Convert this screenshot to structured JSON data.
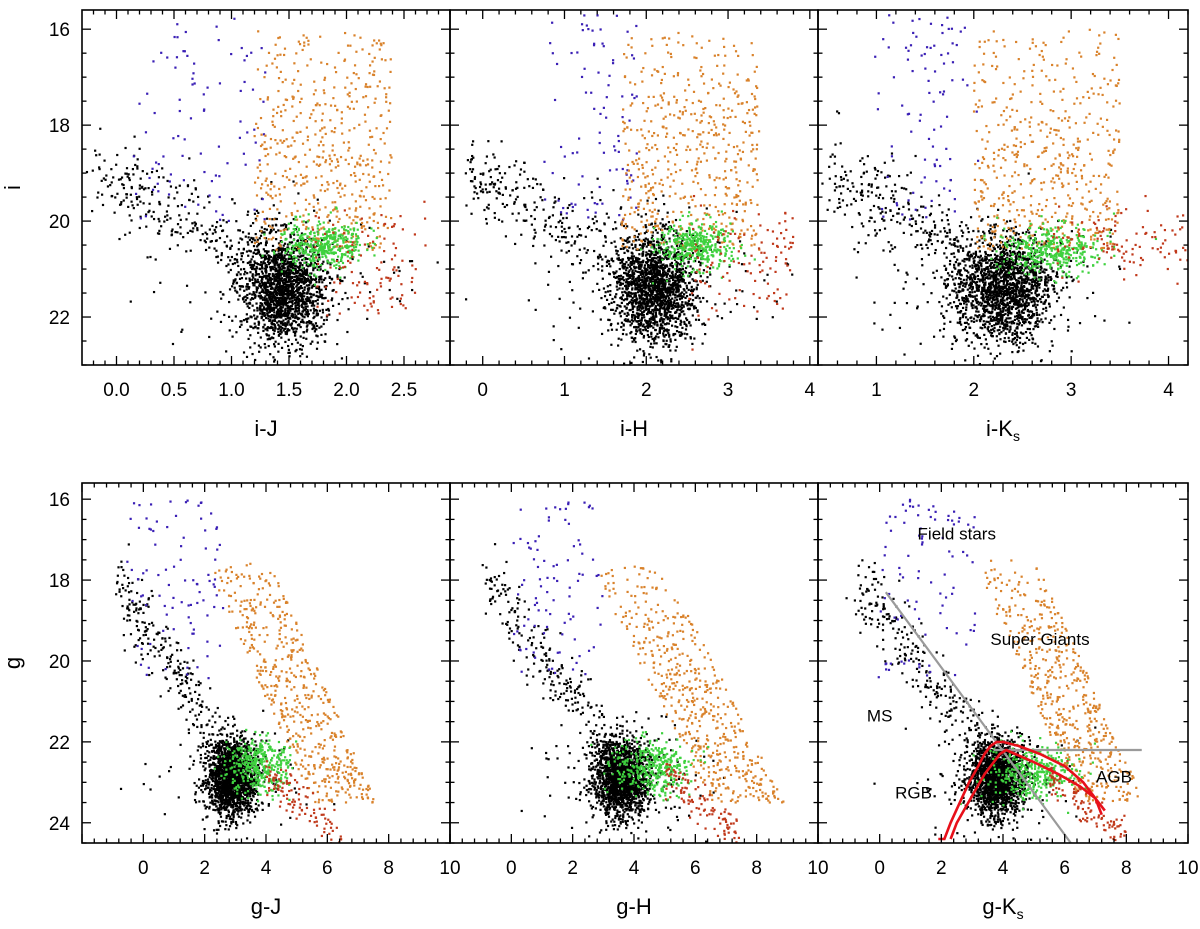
{
  "colors": {
    "ms": "#000000",
    "field": "#3a1fb5",
    "supergiant": "#d9822b",
    "rgb": "#3ed13e",
    "agb": "#c0391b",
    "isochrone": "#e8101a",
    "divider": "#9a9a9a"
  },
  "chart_data": [
    {
      "panel": "i_vs_iJ",
      "type": "scatter",
      "xlabel": "i-J",
      "ylabel": "i",
      "xlim": [
        -0.3,
        2.9
      ],
      "ylim": [
        23.0,
        15.6
      ],
      "xticks": [
        0.0,
        0.5,
        1.0,
        1.5,
        2.0,
        2.5
      ],
      "xtick_labels": [
        "0.0",
        "0.5",
        "1.0",
        "1.5",
        "2.0",
        "2.5"
      ],
      "yticks": [
        16,
        18,
        20,
        22
      ],
      "ytick_labels": [
        "16",
        "18",
        "20",
        "22"
      ],
      "clusters": {
        "ms": {
          "cx": 1.45,
          "cy": 21.4,
          "sx": 0.18,
          "sy": 0.55
        },
        "ms_spread": {
          "x": [
            -0.2,
            1.3
          ],
          "y": [
            19.0,
            20.8
          ],
          "slope": -1.0
        },
        "field": {
          "x": [
            0.2,
            1.3
          ],
          "y": [
            15.7,
            20.0
          ]
        },
        "supergiant": {
          "x": [
            1.2,
            2.4
          ],
          "y": [
            16.0,
            20.6
          ]
        },
        "rgb": {
          "cx": 1.8,
          "cy": 20.5,
          "sx": 0.18,
          "sy": 0.25
        },
        "agb": {
          "x": [
            1.7,
            2.7
          ],
          "y": [
            20.0,
            21.8
          ]
        }
      }
    },
    {
      "panel": "i_vs_iH",
      "type": "scatter",
      "xlabel": "i-H",
      "ylabel": "",
      "xlim": [
        -0.4,
        4.1
      ],
      "ylim": [
        23.0,
        15.6
      ],
      "xticks": [
        0,
        1,
        2,
        3,
        4
      ],
      "xtick_labels": [
        "0",
        "1",
        "2",
        "3",
        "4"
      ],
      "yticks": [
        16,
        18,
        20,
        22
      ],
      "ytick_labels": [],
      "clusters": {
        "ms": {
          "cx": 2.1,
          "cy": 21.4,
          "sx": 0.25,
          "sy": 0.55
        },
        "ms_spread": {
          "x": [
            -0.2,
            1.8
          ],
          "y": [
            19.0,
            20.8
          ],
          "slope": -0.8
        },
        "field": {
          "x": [
            0.8,
            1.9
          ],
          "y": [
            15.7,
            20.0
          ]
        },
        "supergiant": {
          "x": [
            1.7,
            3.4
          ],
          "y": [
            16.0,
            20.6
          ]
        },
        "rgb": {
          "cx": 2.6,
          "cy": 20.5,
          "sx": 0.22,
          "sy": 0.25
        },
        "agb": {
          "x": [
            2.5,
            3.8
          ],
          "y": [
            20.0,
            21.8
          ]
        }
      }
    },
    {
      "panel": "i_vs_iKs",
      "type": "scatter",
      "xlabel": "i-K",
      "xlabel_sub": "s",
      "ylabel": "",
      "xlim": [
        0.4,
        4.2
      ],
      "ylim": [
        23.0,
        15.6
      ],
      "xticks": [
        1,
        2,
        3,
        4
      ],
      "xtick_labels": [
        "1",
        "2",
        "3",
        "4"
      ],
      "yticks": [
        16,
        18,
        20,
        22
      ],
      "ytick_labels": [],
      "clusters": {
        "ms": {
          "cx": 2.3,
          "cy": 21.4,
          "sx": 0.25,
          "sy": 0.55
        },
        "ms_spread": {
          "x": [
            0.5,
            2.0
          ],
          "y": [
            19.0,
            20.8
          ],
          "slope": -0.8
        },
        "field": {
          "x": [
            1.0,
            2.0
          ],
          "y": [
            15.7,
            20.0
          ]
        },
        "supergiant": {
          "x": [
            2.0,
            3.5
          ],
          "y": [
            16.0,
            20.6
          ]
        },
        "rgb": {
          "cx": 2.8,
          "cy": 20.6,
          "sx": 0.25,
          "sy": 0.25
        },
        "agb": {
          "x": [
            2.8,
            4.2
          ],
          "y": [
            20.0,
            21.0
          ]
        }
      }
    },
    {
      "panel": "g_vs_gJ",
      "type": "scatter",
      "xlabel": "g-J",
      "ylabel": "g",
      "xlim": [
        -2.0,
        10.0
      ],
      "ylim": [
        24.5,
        15.6
      ],
      "xticks": [
        0,
        2,
        4,
        6,
        8,
        10
      ],
      "xtick_labels": [
        "0",
        "2",
        "4",
        "6",
        "8",
        "10"
      ],
      "yticks": [
        16,
        18,
        20,
        22,
        24
      ],
      "ytick_labels": [
        "16",
        "18",
        "20",
        "22",
        "24"
      ],
      "clusters": {
        "ms": {
          "cx": 2.9,
          "cy": 22.9,
          "sx": 0.4,
          "sy": 0.45
        },
        "ms_spread": {
          "x": [
            -0.8,
            2.8
          ],
          "y": [
            18.0,
            22.5
          ],
          "slope": 1.2
        },
        "field": {
          "x": [
            -0.5,
            2.5
          ],
          "y": [
            16.0,
            20.5
          ]
        },
        "supergiant": {
          "x": [
            2.0,
            5.5
          ],
          "y": [
            17.5,
            23.5
          ],
          "slope": 1.5
        },
        "rgb": {
          "cx": 3.8,
          "cy": 22.6,
          "sx": 0.5,
          "sy": 0.35
        },
        "agb": {
          "x": [
            4.0,
            6.5
          ],
          "y": [
            22.8,
            24.4
          ],
          "slope": 0.6
        }
      }
    },
    {
      "panel": "g_vs_gH",
      "type": "scatter",
      "xlabel": "g-H",
      "ylabel": "",
      "xlim": [
        -2.0,
        10.0
      ],
      "ylim": [
        24.5,
        15.6
      ],
      "xticks": [
        0,
        2,
        4,
        6,
        8,
        10
      ],
      "xtick_labels": [
        "0",
        "2",
        "4",
        "6",
        "8",
        "10"
      ],
      "yticks": [
        16,
        18,
        20,
        22,
        24
      ],
      "ytick_labels": [],
      "clusters": {
        "ms": {
          "cx": 3.6,
          "cy": 22.9,
          "sx": 0.45,
          "sy": 0.45
        },
        "ms_spread": {
          "x": [
            -0.8,
            3.5
          ],
          "y": [
            18.0,
            22.5
          ],
          "slope": 1.0
        },
        "field": {
          "x": [
            0.0,
            3.0
          ],
          "y": [
            16.0,
            20.5
          ]
        },
        "supergiant": {
          "x": [
            2.5,
            6.5
          ],
          "y": [
            17.5,
            23.5
          ],
          "slope": 1.5
        },
        "rgb": {
          "cx": 4.6,
          "cy": 22.6,
          "sx": 0.6,
          "sy": 0.35
        },
        "agb": {
          "x": [
            5.0,
            7.5
          ],
          "y": [
            22.8,
            24.4
          ],
          "slope": 0.6
        }
      }
    },
    {
      "panel": "g_vs_gKs",
      "type": "scatter",
      "xlabel": "g-K",
      "xlabel_sub": "s",
      "ylabel": "",
      "xlim": [
        -2.0,
        10.0
      ],
      "ylim": [
        24.5,
        15.6
      ],
      "xticks": [
        0,
        2,
        4,
        6,
        8,
        10
      ],
      "xtick_labels": [
        "0",
        "2",
        "4",
        "6",
        "8",
        "10"
      ],
      "yticks": [
        16,
        18,
        20,
        22,
        24
      ],
      "ytick_labels": [],
      "clusters": {
        "ms": {
          "cx": 3.8,
          "cy": 22.9,
          "sx": 0.45,
          "sy": 0.45
        },
        "ms_spread": {
          "x": [
            -0.8,
            3.8
          ],
          "y": [
            18.0,
            22.5
          ],
          "slope": 1.0
        },
        "field": {
          "x": [
            0.0,
            3.0
          ],
          "y": [
            16.0,
            20.5
          ]
        },
        "supergiant": {
          "x": [
            3.0,
            6.5
          ],
          "y": [
            17.5,
            23.5
          ],
          "slope": 1.5
        },
        "rgb": {
          "cx": 5.0,
          "cy": 22.8,
          "sx": 0.7,
          "sy": 0.35
        },
        "agb": {
          "x": [
            5.5,
            8.0
          ],
          "y": [
            22.8,
            24.4
          ],
          "slope": 0.6
        }
      },
      "dividers": [
        {
          "x": [
            0.2,
            6.2
          ],
          "y": [
            18.3,
            24.5
          ]
        },
        {
          "x": [
            3.7,
            8.5
          ],
          "y": [
            22.2,
            22.2
          ]
        }
      ],
      "isochrones": [
        {
          "x": [
            1.9,
            2.1,
            2.3,
            2.6,
            2.9,
            3.2,
            3.4,
            3.6,
            3.8,
            4.0,
            4.5,
            5.2,
            6.0,
            6.6,
            7.0,
            7.2
          ],
          "y": [
            24.4,
            24.4,
            24.0,
            23.5,
            23.0,
            22.6,
            22.3,
            22.1,
            22.0,
            22.0,
            22.1,
            22.3,
            22.6,
            23.0,
            23.4,
            23.8
          ]
        },
        {
          "x": [
            2.3,
            2.5,
            2.8,
            3.1,
            3.4,
            3.7,
            3.9,
            4.1,
            4.4,
            5.0,
            5.8,
            6.5,
            7.0,
            7.3
          ],
          "y": [
            24.4,
            24.0,
            23.6,
            23.2,
            22.8,
            22.5,
            22.3,
            22.2,
            22.3,
            22.5,
            22.8,
            23.1,
            23.4,
            23.7
          ]
        }
      ],
      "annotations": [
        {
          "text": "Field stars",
          "x": 2.5,
          "y": 17.0
        },
        {
          "text": "Super Giants",
          "x": 5.2,
          "y": 19.6
        },
        {
          "text": "MS",
          "x": 0.0,
          "y": 21.5
        },
        {
          "text": "RGB",
          "x": 1.1,
          "y": 23.4
        },
        {
          "text": "AGB",
          "x": 7.6,
          "y": 23.0
        }
      ]
    }
  ]
}
